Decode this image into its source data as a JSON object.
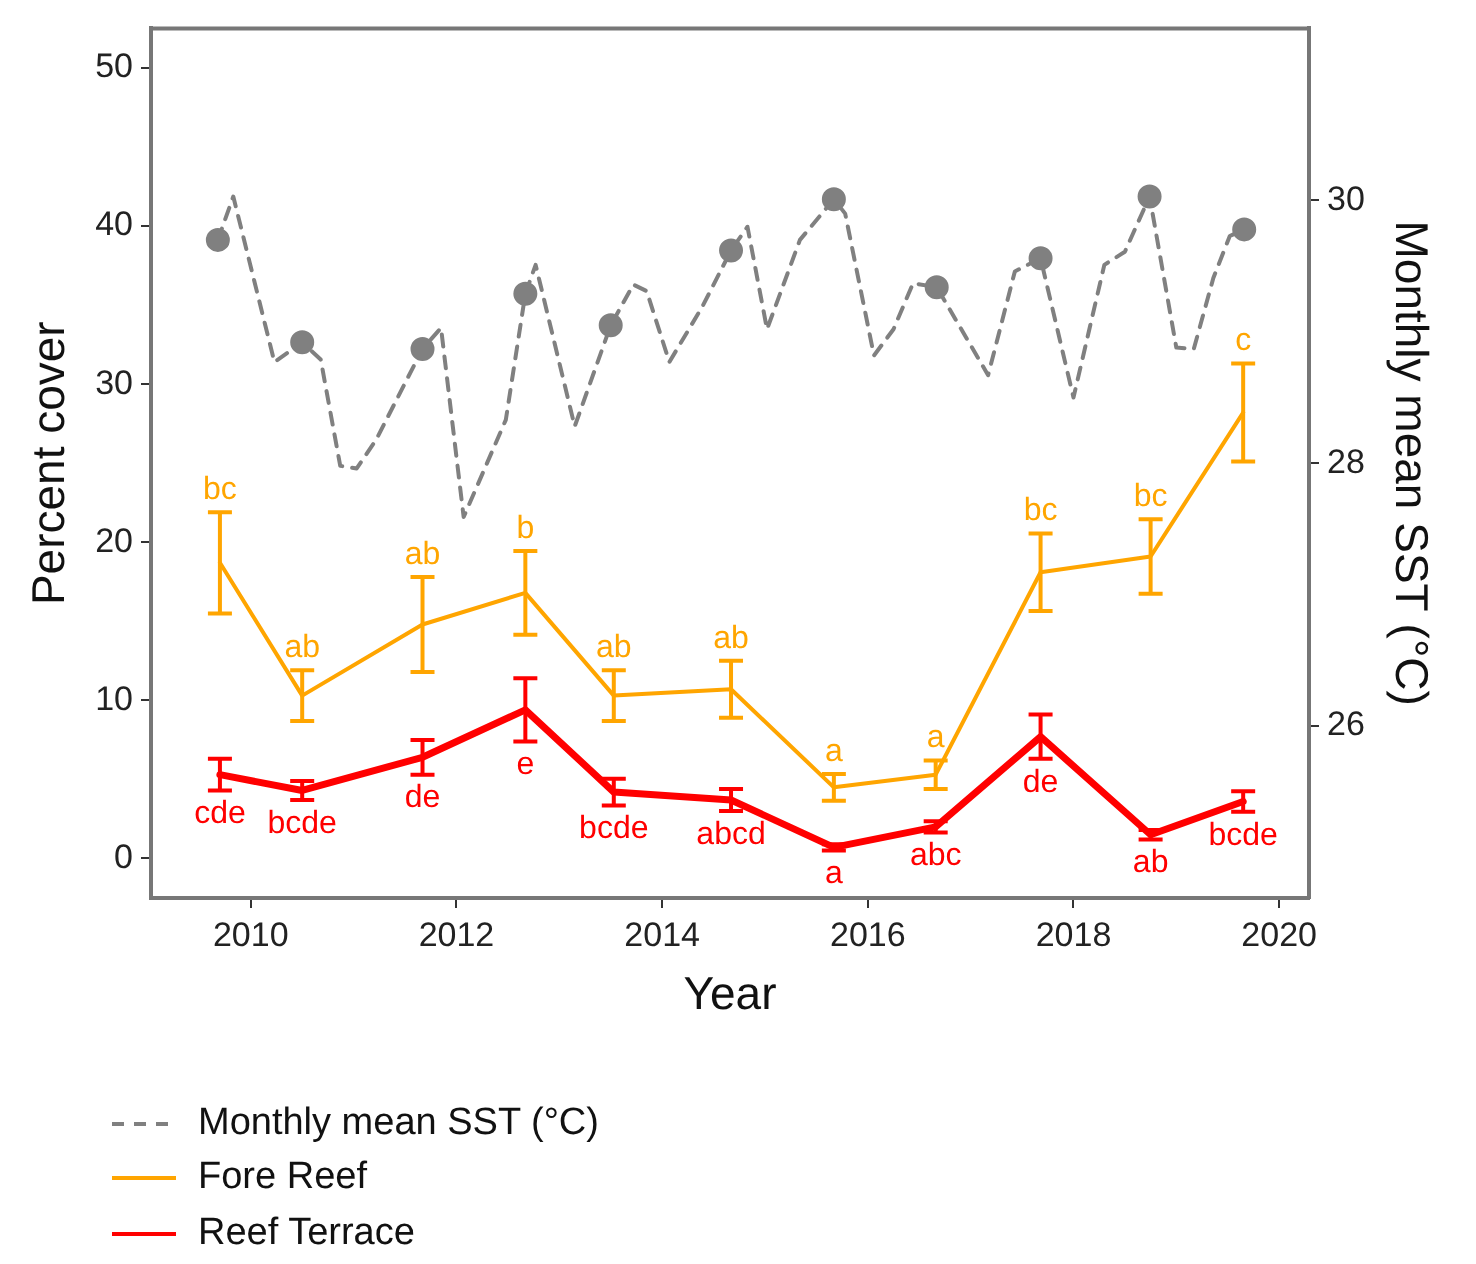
{
  "chart_data": {
    "type": "line",
    "xlabel": "Year",
    "ylabel": "Percent cover",
    "y2label": "Monthly mean SST (°C)",
    "x": [
      2009.7,
      2010.5,
      2011.67,
      2012.67,
      2013.53,
      2014.67,
      2015.67,
      2016.66,
      2017.68,
      2018.75,
      2019.65
    ],
    "series": [
      {
        "name": "Monthly mean SST (°C)",
        "axis": "y2",
        "color": "#808080",
        "line_style": "dashed",
        "marker": "none",
        "x": [
          2009.68,
          2009.83,
          2010.23,
          2010.5,
          2010.68,
          2010.87,
          2011.03,
          2011.22,
          2011.67,
          2011.85,
          2012.07,
          2012.48,
          2012.67,
          2012.77,
          2013.15,
          2013.5,
          2013.72,
          2013.85,
          2014.07,
          2014.39,
          2014.67,
          2014.83,
          2015.02,
          2015.34,
          2015.67,
          2015.78,
          2016.06,
          2016.25,
          2016.44,
          2016.67,
          2017.17,
          2017.43,
          2017.68,
          2018.0,
          2018.3,
          2018.5,
          2018.74,
          2019.0,
          2019.17,
          2019.36,
          2019.52,
          2019.66
        ],
        "values": [
          29.7,
          30.03,
          28.77,
          28.92,
          28.79,
          27.98,
          27.96,
          28.18,
          28.87,
          29.03,
          27.59,
          28.33,
          29.29,
          29.51,
          28.28,
          29.05,
          29.36,
          29.31,
          28.77,
          29.19,
          29.62,
          29.8,
          29.02,
          29.7,
          30.01,
          29.9,
          28.82,
          29.02,
          29.37,
          29.34,
          28.67,
          29.46,
          29.56,
          28.5,
          29.51,
          29.61,
          30.03,
          28.88,
          28.87,
          29.41,
          29.73,
          29.78
        ]
      },
      {
        "type": "scatter",
        "axis": "y2",
        "color": "#808080",
        "marker": "circle",
        "x": [
          2009.68,
          2010.5,
          2011.67,
          2012.67,
          2013.5,
          2014.67,
          2015.67,
          2016.67,
          2017.68,
          2018.74,
          2019.66
        ],
        "values": [
          29.7,
          28.92,
          28.87,
          29.29,
          29.05,
          29.62,
          30.01,
          29.34,
          29.56,
          30.03,
          29.78
        ]
      },
      {
        "name": "Fore Reef",
        "color": "#ffa500",
        "values": [
          18.7,
          10.3,
          14.8,
          16.8,
          10.3,
          10.7,
          4.5,
          5.3,
          18.1,
          19.1,
          28.2
        ],
        "errors": [
          3.2,
          1.6,
          3.0,
          2.65,
          1.6,
          1.8,
          0.85,
          0.9,
          2.45,
          2.35,
          3.1
        ]
      },
      {
        "name": "Reef Terrace",
        "color": "#ff0000",
        "values": [
          5.3,
          4.3,
          6.4,
          9.4,
          4.2,
          3.7,
          0.7,
          2.0,
          7.7,
          1.5,
          3.6
        ],
        "errors": [
          1.0,
          0.6,
          1.1,
          2.0,
          0.85,
          0.7,
          0.2,
          0.35,
          1.4,
          0.3,
          0.65
        ]
      }
    ],
    "annotations": [
      {
        "text": "bc",
        "x": 2009.7,
        "y": 18.7
      },
      {
        "text": "ab",
        "x": 2010.5,
        "y": 10.3
      },
      {
        "text": "ab",
        "x": 2011.67,
        "y": 14.8
      },
      {
        "text": "b",
        "x": 2012.67,
        "y": 16.8
      },
      {
        "text": "ab",
        "x": 2013.53,
        "y": 10.3
      },
      {
        "text": "ab",
        "x": 2014.67,
        "y": 10.7
      },
      {
        "text": "a",
        "x": 2015.67,
        "y": 4.5
      },
      {
        "text": "a",
        "x": 2016.66,
        "y": 5.3
      },
      {
        "text": "bc",
        "x": 2017.68,
        "y": 18.1
      },
      {
        "text": "bc",
        "x": 2018.75,
        "y": 19.1
      },
      {
        "text": "c",
        "x": 2019.65,
        "y": 28.2
      },
      {
        "text": "cde",
        "x": 2009.7,
        "y": 5.3
      },
      {
        "text": "bcde",
        "x": 2010.5,
        "y": 4.3
      },
      {
        "text": "de",
        "x": 2011.67,
        "y": 6.4
      },
      {
        "text": "e",
        "x": 2012.67,
        "y": 9.4
      },
      {
        "text": "bcde",
        "x": 2013.53,
        "y": 4.2
      },
      {
        "text": "abcd",
        "x": 2014.67,
        "y": 3.7
      },
      {
        "text": "a",
        "x": 2015.67,
        "y": 0.7
      },
      {
        "text": "abc",
        "x": 2016.66,
        "y": 2.0
      },
      {
        "text": "de",
        "x": 2017.68,
        "y": 7.7
      },
      {
        "text": "ab",
        "x": 2018.75,
        "y": 1.5
      },
      {
        "text": "bcde",
        "x": 2019.65,
        "y": 3.6
      }
    ],
    "xlim": [
      2009.03,
      2020.29
    ],
    "xticks": [
      2010,
      2012,
      2014,
      2016,
      2018,
      2020
    ],
    "ylim": [
      -2.5,
      52.5
    ],
    "yticks": [
      0,
      10,
      20,
      30,
      40,
      50
    ],
    "y2lim": [
      24.69,
      31.31
    ],
    "y2ticks": [
      26,
      28,
      30
    ],
    "grid": false,
    "legend": "bottom left"
  }
}
